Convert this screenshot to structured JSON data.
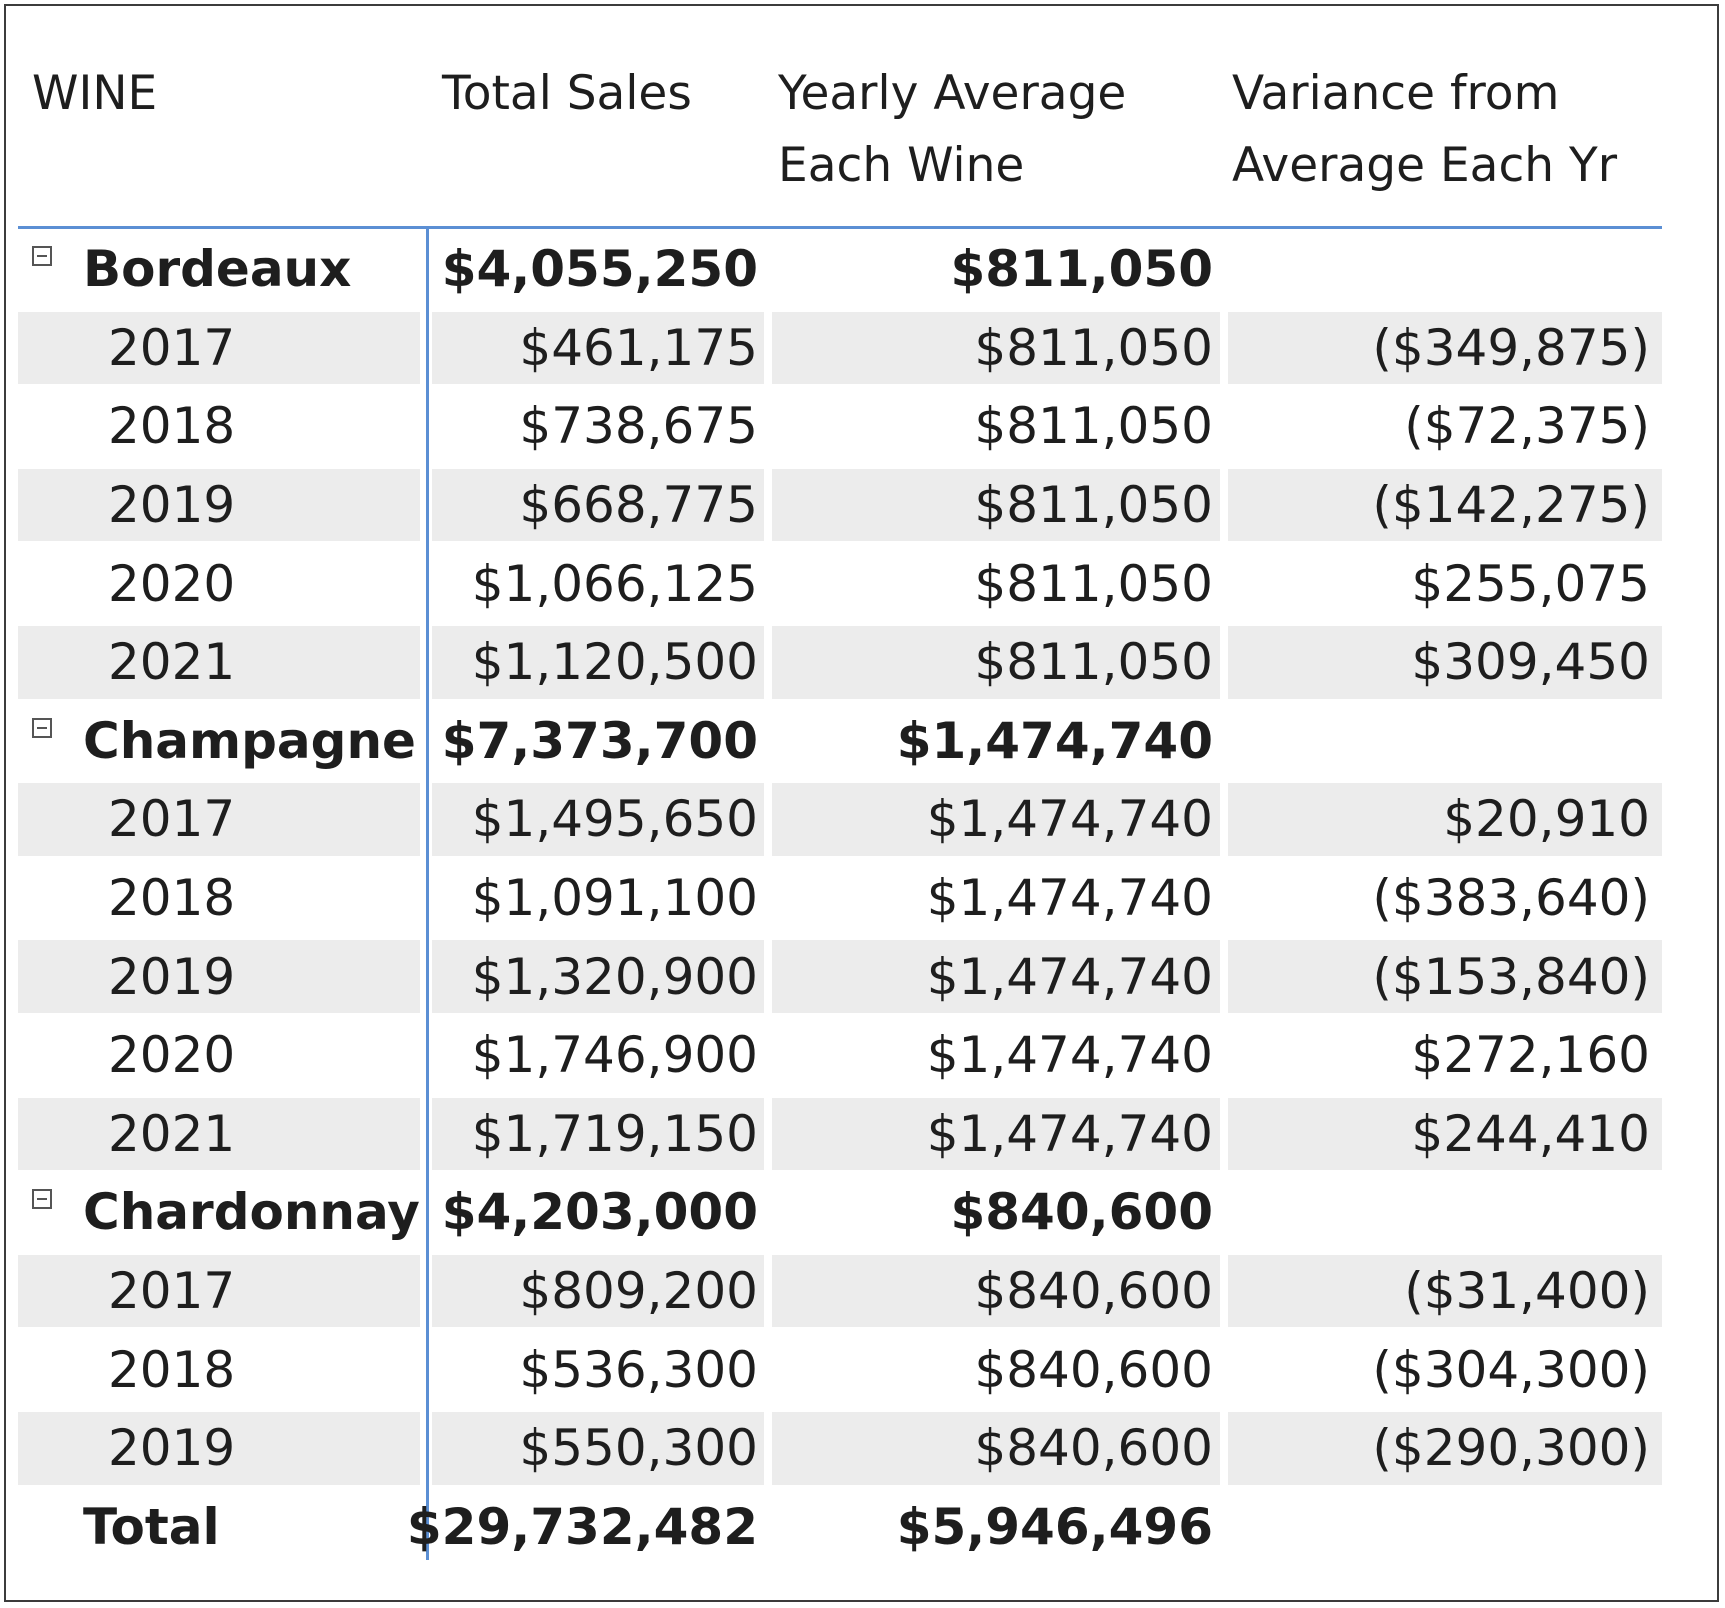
{
  "headers": {
    "wine": "WINE",
    "total_sales": "Total Sales",
    "yearly_avg": "Yearly Average Each Wine",
    "variance": "Variance from Average Each Yr"
  },
  "groups": [
    {
      "name": "Bordeaux",
      "total_sales": "$4,055,250",
      "yearly_avg": "$811,050",
      "rows": [
        {
          "year": "2017",
          "total_sales": "$461,175",
          "yearly_avg": "$811,050",
          "variance": "($349,875)"
        },
        {
          "year": "2018",
          "total_sales": "$738,675",
          "yearly_avg": "$811,050",
          "variance": "($72,375)"
        },
        {
          "year": "2019",
          "total_sales": "$668,775",
          "yearly_avg": "$811,050",
          "variance": "($142,275)"
        },
        {
          "year": "2020",
          "total_sales": "$1,066,125",
          "yearly_avg": "$811,050",
          "variance": "$255,075"
        },
        {
          "year": "2021",
          "total_sales": "$1,120,500",
          "yearly_avg": "$811,050",
          "variance": "$309,450"
        }
      ]
    },
    {
      "name": "Champagne",
      "total_sales": "$7,373,700",
      "yearly_avg": "$1,474,740",
      "rows": [
        {
          "year": "2017",
          "total_sales": "$1,495,650",
          "yearly_avg": "$1,474,740",
          "variance": "$20,910"
        },
        {
          "year": "2018",
          "total_sales": "$1,091,100",
          "yearly_avg": "$1,474,740",
          "variance": "($383,640)"
        },
        {
          "year": "2019",
          "total_sales": "$1,320,900",
          "yearly_avg": "$1,474,740",
          "variance": "($153,840)"
        },
        {
          "year": "2020",
          "total_sales": "$1,746,900",
          "yearly_avg": "$1,474,740",
          "variance": "$272,160"
        },
        {
          "year": "2021",
          "total_sales": "$1,719,150",
          "yearly_avg": "$1,474,740",
          "variance": "$244,410"
        }
      ]
    },
    {
      "name": "Chardonnay",
      "total_sales": "$4,203,000",
      "yearly_avg": "$840,600",
      "rows": [
        {
          "year": "2017",
          "total_sales": "$809,200",
          "yearly_avg": "$840,600",
          "variance": "($31,400)"
        },
        {
          "year": "2018",
          "total_sales": "$536,300",
          "yearly_avg": "$840,600",
          "variance": "($304,300)"
        },
        {
          "year": "2019",
          "total_sales": "$550,300",
          "yearly_avg": "$840,600",
          "variance": "($290,300)"
        }
      ]
    }
  ],
  "total": {
    "label": "Total",
    "total_sales": "$29,732,482",
    "yearly_avg": "$5,946,496"
  }
}
